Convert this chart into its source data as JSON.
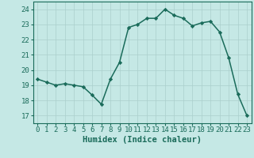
{
  "xlabel": "Humidex (Indice chaleur)",
  "x": [
    0,
    1,
    2,
    3,
    4,
    5,
    6,
    7,
    8,
    9,
    10,
    11,
    12,
    13,
    14,
    15,
    16,
    17,
    18,
    19,
    20,
    21,
    22,
    23
  ],
  "y": [
    19.4,
    19.2,
    19.0,
    19.1,
    19.0,
    18.9,
    18.35,
    17.75,
    19.4,
    20.5,
    22.8,
    23.0,
    23.4,
    23.4,
    24.0,
    23.6,
    23.4,
    22.9,
    23.1,
    23.2,
    22.5,
    20.8,
    18.4,
    17.0
  ],
  "line_color": "#1a6b5a",
  "marker": "D",
  "marker_size": 2.2,
  "line_width": 1.1,
  "bg_color": "#c5e8e5",
  "grid_color": "#aacfcc",
  "tick_color": "#1a6b5a",
  "label_color": "#1a6b5a",
  "ylim": [
    16.5,
    24.5
  ],
  "xlim": [
    -0.5,
    23.5
  ],
  "yticks": [
    17,
    18,
    19,
    20,
    21,
    22,
    23,
    24
  ],
  "xticks": [
    0,
    1,
    2,
    3,
    4,
    5,
    6,
    7,
    8,
    9,
    10,
    11,
    12,
    13,
    14,
    15,
    16,
    17,
    18,
    19,
    20,
    21,
    22,
    23
  ],
  "axis_label_fontsize": 7.5,
  "tick_fontsize": 6.5
}
